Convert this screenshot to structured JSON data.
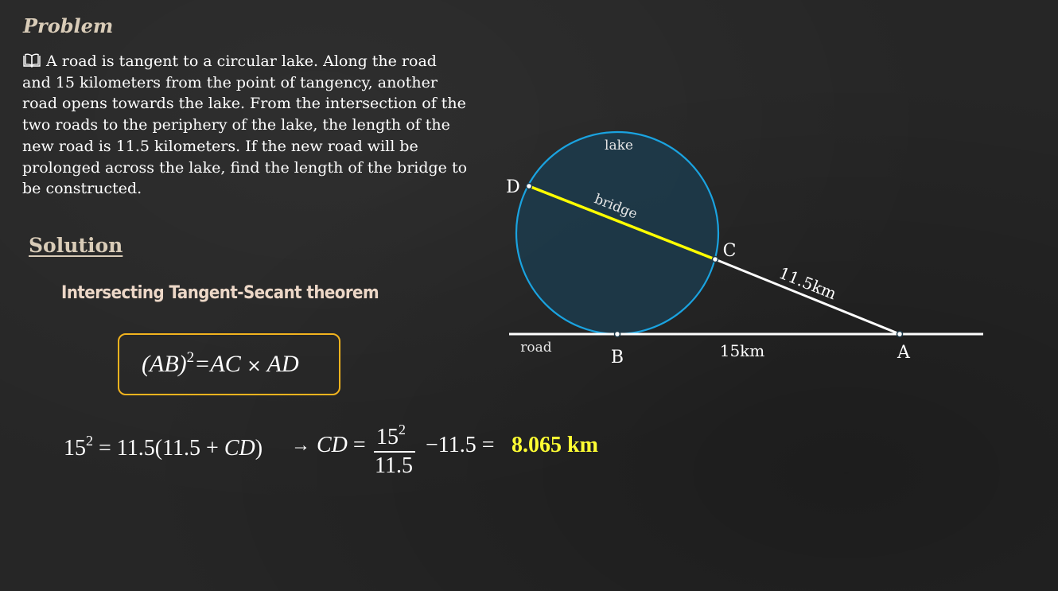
{
  "problem": {
    "heading": "Problem",
    "icon": "book-icon",
    "text": "A road is tangent to a circular lake. Along the road and 15 kilometers from the point of tangency, another road opens towards the lake. From the intersection of the two roads to the periphery of the lake, the length of the new road is 11.5 kilometers. If the new road will be prolonged across the lake, find the length of the bridge to be constructed."
  },
  "solution": {
    "heading": "Solution",
    "theorem": "Intersecting Tangent-Secant theorem",
    "formula": {
      "lhs": "(AB)",
      "exp": "2",
      "rhs1": "=AC",
      "times": "×",
      "rhs2": "AD"
    },
    "equation": {
      "base": "15",
      "base_exp": "2",
      "eq1": "= 11.5(11.5 + ",
      "cd": "CD",
      "close": ")",
      "arrow": "→",
      "cd2": "CD",
      "eq2": "=",
      "frac_num": "15",
      "frac_num_exp": "2",
      "frac_den": "11.5",
      "minus": "−11.5 =",
      "result": "8.065 km"
    }
  },
  "diagram": {
    "labels": {
      "lake": "lake",
      "bridge": "bridge",
      "road": "road",
      "d": "D",
      "c": "C",
      "b": "B",
      "a": "A",
      "ab_length": "15km",
      "ac_length": "11.5km"
    },
    "colors": {
      "circle_stroke": "#1aa3e0",
      "circle_fill": "#1d3a4a",
      "bridge": "#ffff00",
      "road": "#ffffff",
      "formula_border": "#f2b31e",
      "heading": "#d9ccb8",
      "result": "#ffff33"
    }
  }
}
